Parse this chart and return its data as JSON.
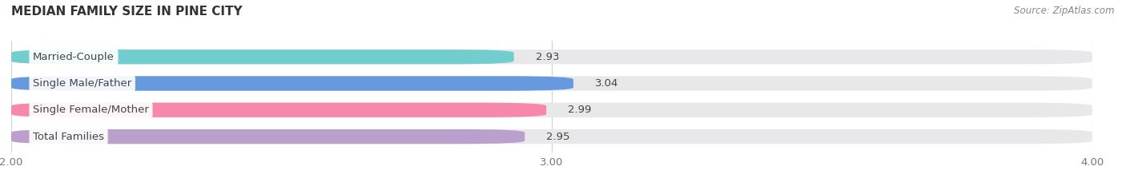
{
  "title": "MEDIAN FAMILY SIZE IN PINE CITY",
  "source": "Source: ZipAtlas.com",
  "categories": [
    "Married-Couple",
    "Single Male/Father",
    "Single Female/Mother",
    "Total Families"
  ],
  "values": [
    2.93,
    3.04,
    2.99,
    2.95
  ],
  "bar_colors": [
    "#72cece",
    "#6699dd",
    "#f888aa",
    "#bb9fcc"
  ],
  "bar_bg_color": "#e8e8ea",
  "xlim_left": 2.0,
  "xlim_right": 4.0,
  "xticks": [
    2.0,
    3.0,
    4.0
  ],
  "title_fontsize": 11,
  "label_fontsize": 9.5,
  "value_fontsize": 9.5,
  "source_fontsize": 8.5,
  "tick_fontsize": 9.5,
  "background_color": "#ffffff",
  "text_color": "#444444",
  "tick_color": "#777777",
  "source_color": "#888888",
  "grid_color": "#d0d0d0"
}
